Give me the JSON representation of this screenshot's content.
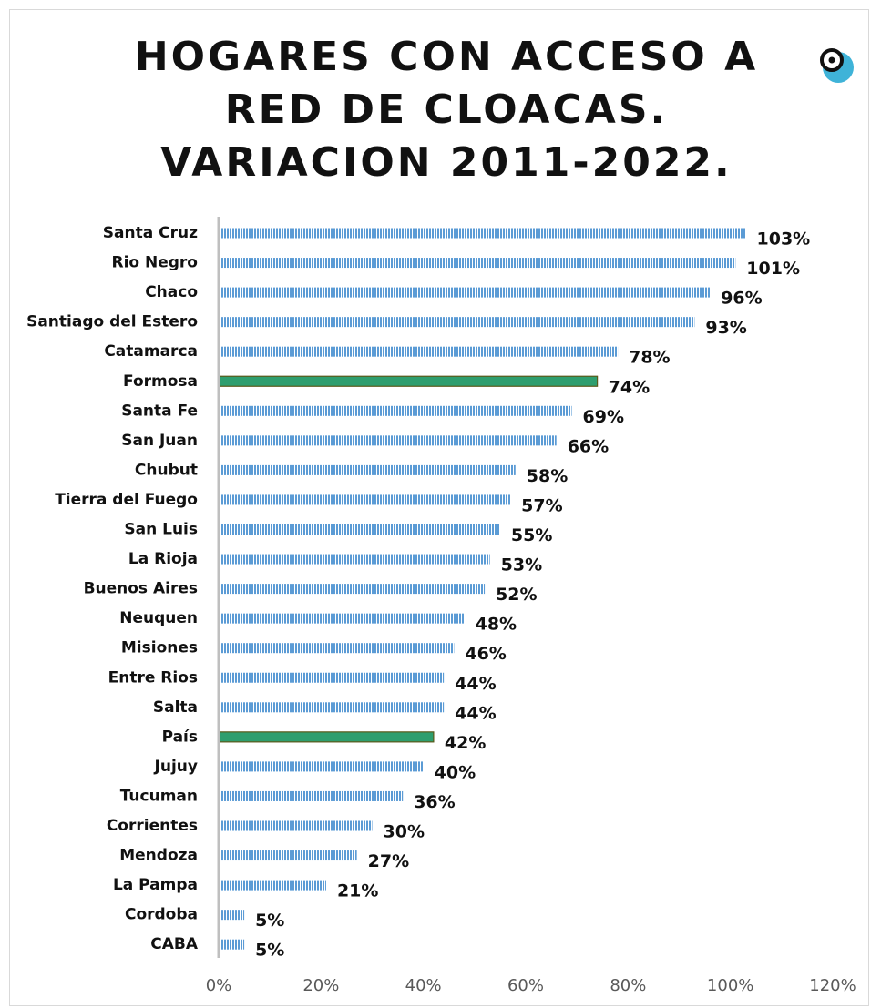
{
  "chart_data": {
    "type": "bar",
    "orientation": "horizontal",
    "title": "HOGARES CON ACCESO A RED DE CLOACAS. VARIACION 2011-2022.",
    "categories": [
      "Santa Cruz",
      "Rio Negro",
      "Chaco",
      "Santiago del Estero",
      "Catamarca",
      "Formosa",
      "Santa Fe",
      "San Juan",
      "Chubut",
      "Tierra del Fuego",
      "San Luis",
      "La Rioja",
      "Buenos Aires",
      "Neuquen",
      "Misiones",
      "Entre Rios",
      "Salta",
      "País",
      "Jujuy",
      "Tucuman",
      "Corrientes",
      "Mendoza",
      "La Pampa",
      "Cordoba",
      "CABA"
    ],
    "values": [
      103,
      101,
      96,
      93,
      78,
      74,
      69,
      66,
      58,
      57,
      55,
      53,
      52,
      48,
      46,
      44,
      44,
      42,
      40,
      36,
      30,
      27,
      21,
      5,
      5
    ],
    "value_labels": [
      "103%",
      "101%",
      "96%",
      "93%",
      "78%",
      "74%",
      "69%",
      "66%",
      "58%",
      "57%",
      "55%",
      "53%",
      "52%",
      "48%",
      "46%",
      "44%",
      "44%",
      "42%",
      "40%",
      "36%",
      "30%",
      "27%",
      "21%",
      "5%",
      "5%"
    ],
    "colors": [
      "#5b9bd5",
      "#5b9bd5",
      "#5b9bd5",
      "#5b9bd5",
      "#5b9bd5",
      "#2e9e6e",
      "#5b9bd5",
      "#5b9bd5",
      "#5b9bd5",
      "#5b9bd5",
      "#5b9bd5",
      "#5b9bd5",
      "#5b9bd5",
      "#5b9bd5",
      "#5b9bd5",
      "#5b9bd5",
      "#5b9bd5",
      "#2e9e6e",
      "#5b9bd5",
      "#5b9bd5",
      "#5b9bd5",
      "#5b9bd5",
      "#5b9bd5",
      "#5b9bd5",
      "#5b9bd5"
    ],
    "xlim": [
      0,
      120
    ],
    "xticks": [
      {
        "value": 0,
        "label": "0%"
      },
      {
        "value": 20,
        "label": "20%"
      },
      {
        "value": 40,
        "label": "40%"
      },
      {
        "value": 60,
        "label": "60%"
      },
      {
        "value": 80,
        "label": "80%"
      },
      {
        "value": 100,
        "label": "100%"
      },
      {
        "value": 120,
        "label": "120%"
      }
    ],
    "grid": false
  }
}
